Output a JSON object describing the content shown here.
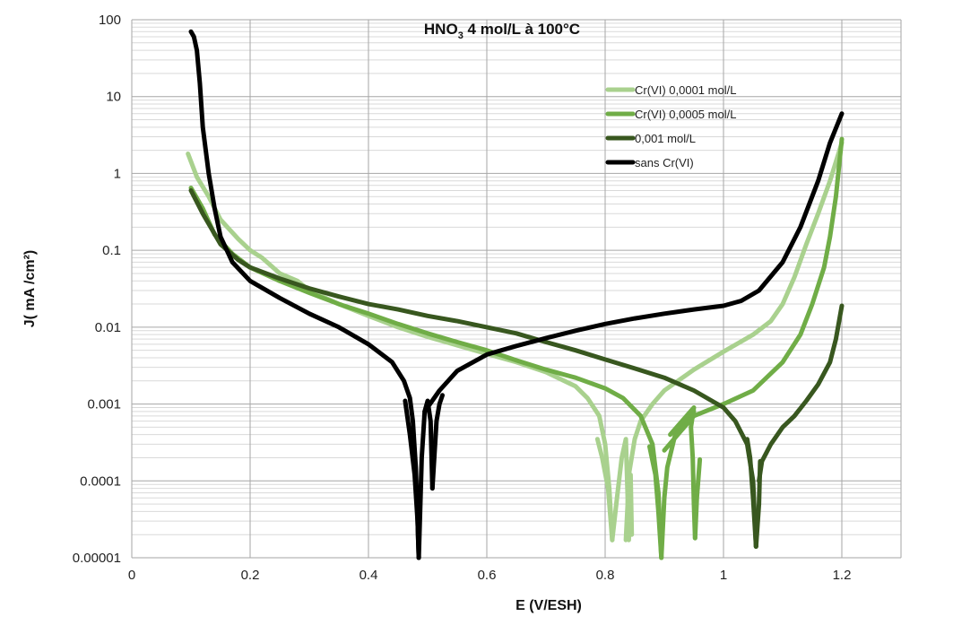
{
  "chart_data": {
    "type": "line",
    "title": "HNO",
    "title_sub": "3",
    "title_rest": " 4 mol/L à 100°C",
    "xlabel": "E (V/ESH)",
    "ylabel": "J( mA /cm²)",
    "xlim": [
      0,
      1.3
    ],
    "ylim": [
      1e-05,
      100
    ],
    "yscale": "log",
    "grid": true,
    "legend_position": "upper-right",
    "x_ticks": [
      "0",
      "0.2",
      "0.4",
      "0.6",
      "0.8",
      "1",
      "1.2"
    ],
    "x_tick_values": [
      0,
      0.2,
      0.4,
      0.6,
      0.8,
      1.0,
      1.2
    ],
    "y_ticks": [
      "100",
      "10",
      "1",
      "0.1",
      "0.01",
      "0.001",
      "0.0001",
      "0.00001"
    ],
    "y_tick_values": [
      100,
      10,
      1,
      0.1,
      0.01,
      0.001,
      0.0001,
      1e-05
    ],
    "series": [
      {
        "name": "Cr(VI) 0,0001 mol/L",
        "color": "#a9d18e",
        "segments": [
          [
            [
              0.095,
              1.8
            ],
            [
              0.11,
              0.9
            ],
            [
              0.13,
              0.5
            ],
            [
              0.15,
              0.25
            ],
            [
              0.18,
              0.14
            ],
            [
              0.2,
              0.1
            ],
            [
              0.22,
              0.08
            ],
            [
              0.25,
              0.05
            ],
            [
              0.28,
              0.04
            ],
            [
              0.3,
              0.03
            ],
            [
              0.35,
              0.02
            ],
            [
              0.4,
              0.014
            ],
            [
              0.45,
              0.01
            ],
            [
              0.5,
              0.0075
            ],
            [
              0.55,
              0.0058
            ],
            [
              0.6,
              0.0045
            ],
            [
              0.65,
              0.0035
            ],
            [
              0.7,
              0.0026
            ],
            [
              0.75,
              0.0017
            ],
            [
              0.77,
              0.0012
            ],
            [
              0.79,
              0.0007
            ],
            [
              0.8,
              0.0003
            ],
            [
              0.807,
              8e-05
            ],
            [
              0.812,
              1.7e-05
            ]
          ],
          [
            [
              0.787,
              0.00035
            ],
            [
              0.795,
              0.0002
            ],
            [
              0.805,
              8e-05
            ],
            [
              0.812,
              1.7e-05
            ]
          ],
          [
            [
              0.812,
              1.7e-05
            ],
            [
              0.82,
              6e-05
            ],
            [
              0.828,
              0.0002
            ],
            [
              0.835,
              0.00035
            ],
            [
              0.84,
              2e-05
            ]
          ],
          [
            [
              0.835,
              1.7e-05
            ],
            [
              0.838,
              5e-05
            ],
            [
              0.84,
              0.00012
            ],
            [
              0.85,
              0.00035
            ],
            [
              0.86,
              0.0006
            ],
            [
              0.88,
              0.001
            ],
            [
              0.9,
              0.0015
            ],
            [
              0.95,
              0.0028
            ],
            [
              1.0,
              0.0048
            ],
            [
              1.05,
              0.008
            ],
            [
              1.08,
              0.012
            ],
            [
              1.1,
              0.02
            ],
            [
              1.12,
              0.045
            ],
            [
              1.14,
              0.12
            ],
            [
              1.16,
              0.3
            ],
            [
              1.18,
              0.8
            ],
            [
              1.2,
              2.5
            ]
          ],
          [
            [
              0.84,
              1.7e-05
            ],
            [
              0.843,
              0.00012
            ],
            [
              0.845,
              2e-05
            ]
          ]
        ]
      },
      {
        "name": "Cr(VI) 0,0005 mol/L",
        "color": "#70ad47",
        "segments": [
          [
            [
              0.1,
              0.65
            ],
            [
              0.12,
              0.35
            ],
            [
              0.14,
              0.16
            ],
            [
              0.17,
              0.09
            ],
            [
              0.2,
              0.06
            ],
            [
              0.25,
              0.04
            ],
            [
              0.3,
              0.028
            ],
            [
              0.35,
              0.02
            ],
            [
              0.4,
              0.015
            ],
            [
              0.45,
              0.011
            ],
            [
              0.5,
              0.0083
            ],
            [
              0.55,
              0.0064
            ],
            [
              0.6,
              0.005
            ],
            [
              0.65,
              0.0037
            ],
            [
              0.7,
              0.0028
            ],
            [
              0.75,
              0.0022
            ],
            [
              0.8,
              0.0016
            ],
            [
              0.83,
              0.0012
            ],
            [
              0.86,
              0.0007
            ],
            [
              0.88,
              0.0003
            ],
            [
              0.89,
              7e-05
            ],
            [
              0.895,
              1e-05
            ]
          ],
          [
            [
              0.875,
              0.00028
            ],
            [
              0.885,
              0.00012
            ],
            [
              0.89,
              4e-05
            ],
            [
              0.895,
              1e-05
            ]
          ],
          [
            [
              0.895,
              1e-05
            ],
            [
              0.9,
              6e-05
            ],
            [
              0.905,
              0.00015
            ],
            [
              0.92,
              0.00045
            ],
            [
              0.94,
              0.00065
            ],
            [
              0.95,
              0.0008
            ]
          ],
          [
            [
              0.91,
              0.0004
            ],
            [
              0.95,
              0.0009
            ],
            [
              0.945,
              0.0005
            ],
            [
              0.948,
              0.0002
            ],
            [
              0.95,
              5e-05
            ],
            [
              0.952,
              1.8e-05
            ]
          ],
          [
            [
              0.952,
              1.8e-05
            ],
            [
              0.955,
              6e-05
            ],
            [
              0.96,
              0.00019
            ]
          ],
          [
            [
              0.9,
              0.00025
            ],
            [
              0.95,
              0.0007
            ],
            [
              1.0,
              0.001
            ],
            [
              1.05,
              0.0015
            ],
            [
              1.1,
              0.0035
            ],
            [
              1.13,
              0.008
            ],
            [
              1.15,
              0.02
            ],
            [
              1.17,
              0.06
            ],
            [
              1.18,
              0.15
            ],
            [
              1.19,
              0.5
            ],
            [
              1.2,
              2.8
            ]
          ]
        ]
      },
      {
        "name": "0,001 mol/L",
        "color": "#38571f",
        "segments": [
          [
            [
              0.1,
              0.6
            ],
            [
              0.12,
              0.3
            ],
            [
              0.15,
              0.12
            ],
            [
              0.18,
              0.075
            ],
            [
              0.2,
              0.06
            ],
            [
              0.25,
              0.043
            ],
            [
              0.3,
              0.032
            ],
            [
              0.35,
              0.025
            ],
            [
              0.4,
              0.02
            ],
            [
              0.45,
              0.017
            ],
            [
              0.5,
              0.014
            ],
            [
              0.55,
              0.012
            ],
            [
              0.6,
              0.01
            ],
            [
              0.65,
              0.0083
            ],
            [
              0.7,
              0.0064
            ],
            [
              0.75,
              0.005
            ],
            [
              0.8,
              0.0038
            ],
            [
              0.85,
              0.0029
            ],
            [
              0.9,
              0.0022
            ],
            [
              0.95,
              0.0015
            ],
            [
              1.0,
              0.0009
            ],
            [
              1.02,
              0.0006
            ],
            [
              1.04,
              0.0003
            ],
            [
              1.05,
              0.0001
            ],
            [
              1.055,
              1.4e-05
            ]
          ],
          [
            [
              1.04,
              0.00035
            ],
            [
              1.045,
              0.0002
            ],
            [
              1.05,
              6e-05
            ],
            [
              1.055,
              1.4e-05
            ]
          ],
          [
            [
              1.055,
              1.4e-05
            ],
            [
              1.06,
              5e-05
            ],
            [
              1.062,
              0.00018
            ]
          ],
          [
            [
              1.06,
              0.0001
            ],
            [
              1.065,
              0.00018
            ],
            [
              1.08,
              0.0003
            ],
            [
              1.1,
              0.0005
            ],
            [
              1.12,
              0.0007
            ],
            [
              1.14,
              0.0011
            ],
            [
              1.16,
              0.0018
            ],
            [
              1.18,
              0.0035
            ],
            [
              1.19,
              0.007
            ],
            [
              1.2,
              0.019
            ]
          ]
        ]
      },
      {
        "name": "sans Cr(VI)",
        "color": "#000000",
        "segments": [
          [
            [
              0.1,
              70
            ],
            [
              0.105,
              60
            ],
            [
              0.11,
              40
            ],
            [
              0.115,
              15
            ],
            [
              0.12,
              4
            ],
            [
              0.13,
              1
            ],
            [
              0.14,
              0.35
            ],
            [
              0.15,
              0.15
            ],
            [
              0.17,
              0.07
            ],
            [
              0.2,
              0.04
            ],
            [
              0.25,
              0.024
            ],
            [
              0.3,
              0.015
            ],
            [
              0.35,
              0.01
            ],
            [
              0.4,
              0.006
            ],
            [
              0.44,
              0.0035
            ],
            [
              0.46,
              0.002
            ],
            [
              0.47,
              0.0012
            ],
            [
              0.475,
              0.0006
            ],
            [
              0.48,
              0.00015
            ],
            [
              0.483,
              3e-05
            ],
            [
              0.485,
              1e-05
            ]
          ],
          [
            [
              0.462,
              0.0011
            ],
            [
              0.47,
              0.0004
            ],
            [
              0.478,
              0.00012
            ],
            [
              0.483,
              3e-05
            ],
            [
              0.485,
              1e-05
            ]
          ],
          [
            [
              0.485,
              1e-05
            ],
            [
              0.49,
              0.0002
            ],
            [
              0.495,
              0.0008
            ],
            [
              0.5,
              0.0011
            ],
            [
              0.505,
              0.0006
            ],
            [
              0.508,
              8e-05
            ]
          ],
          [
            [
              0.508,
              8e-05
            ],
            [
              0.515,
              0.0006
            ],
            [
              0.52,
              0.001
            ],
            [
              0.525,
              0.0013
            ]
          ],
          [
            [
              0.495,
              0.0008
            ],
            [
              0.52,
              0.0015
            ],
            [
              0.55,
              0.0027
            ],
            [
              0.6,
              0.0044
            ],
            [
              0.65,
              0.0057
            ],
            [
              0.7,
              0.0072
            ],
            [
              0.75,
              0.009
            ],
            [
              0.8,
              0.011
            ],
            [
              0.85,
              0.013
            ],
            [
              0.9,
              0.015
            ],
            [
              0.95,
              0.017
            ],
            [
              1.0,
              0.019
            ],
            [
              1.03,
              0.022
            ],
            [
              1.06,
              0.03
            ],
            [
              1.1,
              0.07
            ],
            [
              1.13,
              0.2
            ],
            [
              1.16,
              0.8
            ],
            [
              1.18,
              2.5
            ],
            [
              1.2,
              6
            ]
          ]
        ]
      }
    ]
  }
}
